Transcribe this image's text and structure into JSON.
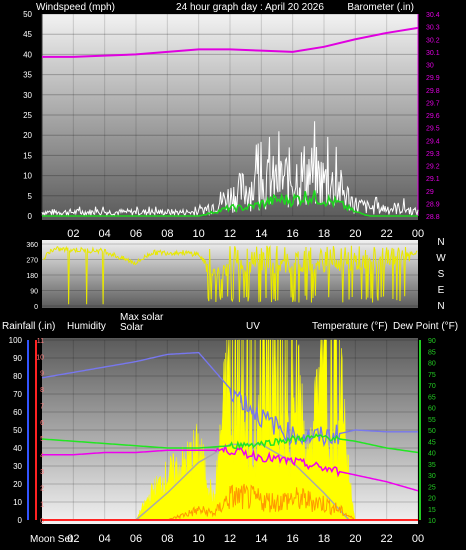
{
  "top": {
    "title": "24 hour graph day : April 20 2026",
    "left_label": "Windspeed (mph)",
    "right_label": "Barometer (.in)"
  },
  "bottom": {
    "labels": {
      "rainfall": "Rainfall (.in)",
      "humidity": "Humidity",
      "max_solar": "Max solar",
      "solar": "Solar",
      "uv": "UV",
      "temperature": "Temperature (°F)",
      "dew_point": "Dew Point (°F)"
    },
    "moon_label": "Moon Set"
  },
  "colors": {
    "panel_top": "#5a5a5a",
    "panel_bottom": "#f2f2f2",
    "barometer": "#e000e0",
    "wind": "#ffffff",
    "gust": "#1fd51f",
    "direction": "#e8e800",
    "humidity": "#7777ee",
    "temperature": "#ee00ee",
    "dew_point": "#22e622",
    "solar": "#ffff00",
    "max_solar": "#aaaaaa",
    "uv": "#ff9a00",
    "rain_axis": "#3355ff",
    "uv_axis": "#ff2222",
    "uv_axis_text": "#ff8080",
    "temp_axis": "#22cc22",
    "axis_text": "#ffffff"
  },
  "chart_data": [
    {
      "type": "line",
      "x_ticks": [
        "02",
        "04",
        "06",
        "08",
        "10",
        "12",
        "14",
        "16",
        "18",
        "20",
        "22",
        "00"
      ],
      "y_left": {
        "ticks": [
          "0",
          "5",
          "10",
          "15",
          "20",
          "25",
          "30",
          "35",
          "40",
          "45",
          "50"
        ],
        "ylim": [
          0,
          50
        ]
      },
      "y_right": {
        "ticks": [
          "28.8",
          "28.9",
          "29",
          "29.1",
          "29.2",
          "29.3",
          "29.4",
          "29.5",
          "29.6",
          "29.7",
          "29.8",
          "29.9",
          "30",
          "30.1",
          "30.2",
          "30.3",
          "30.4"
        ],
        "ylim": [
          28.8,
          30.4
        ]
      },
      "series": [
        {
          "axis": "right",
          "x": [
            0,
            2,
            4,
            6,
            8,
            10,
            12,
            14,
            16,
            18,
            20,
            22,
            24
          ],
          "values": [
            30.06,
            30.06,
            30.07,
            30.08,
            30.1,
            30.12,
            30.12,
            30.11,
            30.1,
            30.14,
            30.2,
            30.25,
            30.29
          ]
        },
        {
          "axis": "left",
          "x": [
            0,
            2,
            4,
            6,
            8,
            10,
            11,
            12,
            13,
            14,
            15,
            16,
            17,
            18,
            19,
            20,
            21,
            22,
            23,
            24
          ],
          "values": [
            1,
            1,
            1,
            1,
            1,
            1,
            3,
            5,
            7,
            8,
            9,
            10,
            11,
            9,
            7,
            3,
            2,
            2,
            2,
            1
          ]
        },
        {
          "axis": "left",
          "x": [
            0,
            4,
            8,
            10,
            11,
            12,
            13,
            14,
            15,
            16,
            17,
            18,
            19,
            20,
            21,
            22,
            24
          ],
          "values": [
            0,
            0,
            0,
            0,
            1,
            2,
            2,
            3,
            4,
            4,
            5,
            4,
            3,
            1,
            0,
            0,
            0
          ]
        }
      ]
    },
    {
      "type": "line",
      "y_ticks": [
        "360",
        "270",
        "180",
        "90",
        "0"
      ],
      "ylim": [
        0,
        360
      ],
      "dir_labels": [
        "N",
        "W",
        "S",
        "E",
        "N"
      ],
      "series": [
        {
          "x": [
            0.1,
            0.5,
            1,
            4,
            5,
            6,
            7,
            9,
            10,
            10.5,
            11,
            12,
            14,
            16,
            18,
            20,
            22,
            23.5,
            24
          ],
          "values": [
            270,
            320,
            330,
            320,
            280,
            250,
            310,
            310,
            300,
            240,
            180,
            220,
            230,
            240,
            230,
            250,
            260,
            300,
            320
          ]
        }
      ]
    },
    {
      "type": "line",
      "x_ticks": [
        "02",
        "04",
        "06",
        "08",
        "10",
        "12",
        "14",
        "16",
        "18",
        "20",
        "22",
        "00"
      ],
      "y_left_humidity": {
        "ticks": [
          "0",
          "10",
          "20",
          "30",
          "40",
          "50",
          "60",
          "70",
          "80",
          "90",
          "100"
        ],
        "ylim": [
          0,
          100
        ]
      },
      "y_left_uv": {
        "ticks": [
          "0",
          "1",
          "2",
          "3",
          "4",
          "5",
          "6",
          "7",
          "8",
          "9",
          "10",
          "11"
        ],
        "ylim": [
          0,
          11
        ]
      },
      "y_right": {
        "ticks": [
          "10",
          "15",
          "20",
          "25",
          "30",
          "35",
          "40",
          "45",
          "50",
          "55",
          "60",
          "65",
          "70",
          "75",
          "80",
          "85",
          "90"
        ],
        "ylim": [
          10,
          90
        ]
      },
      "series": [
        {
          "axis": "humidity",
          "x": [
            0,
            2,
            4,
            6,
            8,
            10,
            12,
            14,
            16,
            18,
            20,
            22,
            24
          ],
          "values": [
            79,
            82,
            85,
            88,
            92,
            93,
            73,
            57,
            47,
            46,
            50,
            49,
            49
          ]
        },
        {
          "axis": "temp",
          "x": [
            0,
            2,
            4,
            6,
            8,
            10,
            12,
            14,
            16,
            18,
            20,
            22,
            24
          ],
          "values": [
            39,
            39,
            40,
            40,
            41,
            41,
            41,
            38,
            36,
            33,
            30,
            27,
            23
          ]
        },
        {
          "axis": "temp",
          "x": [
            0,
            2,
            4,
            6,
            8,
            10,
            12,
            14,
            16,
            18,
            20,
            22,
            24
          ],
          "values": [
            46,
            45,
            44,
            43,
            42,
            42,
            43,
            44,
            46,
            47,
            45,
            42,
            40
          ]
        },
        {
          "axis": "humidity",
          "x": [
            6,
            8,
            10,
            12,
            14,
            16,
            18,
            19.6
          ],
          "values": [
            0,
            15,
            32,
            42,
            42,
            32,
            15,
            0
          ]
        },
        {
          "axis": "humidity",
          "x": [
            0,
            6,
            6.3,
            7,
            8,
            9,
            10,
            11,
            12,
            13,
            14,
            15,
            16,
            17,
            18,
            19,
            19.5,
            20,
            24
          ],
          "values": [
            0,
            0,
            5,
            15,
            25,
            30,
            40,
            10,
            100,
            100,
            100,
            100,
            100,
            30,
            100,
            100,
            30,
            0,
            0
          ]
        },
        {
          "axis": "uv",
          "x": [
            0,
            8,
            9,
            10,
            11,
            12,
            13,
            14,
            15,
            16,
            17,
            18,
            19,
            20,
            24
          ],
          "values": [
            0,
            0,
            0.3,
            0.6,
            0.4,
            1.4,
            1.4,
            1.2,
            1.1,
            1.3,
            1.2,
            1.0,
            0.6,
            0,
            0
          ]
        }
      ]
    }
  ]
}
